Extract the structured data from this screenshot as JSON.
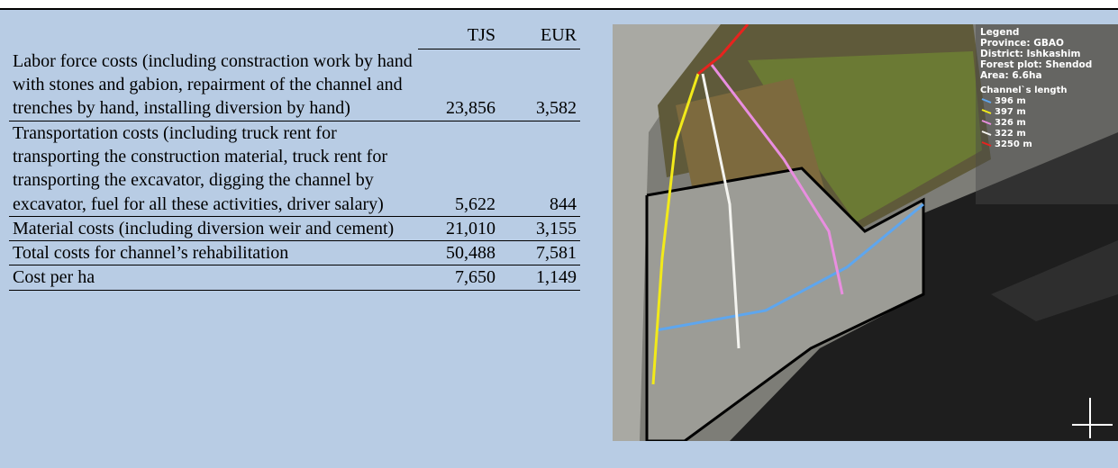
{
  "table": {
    "header": [
      "TJS",
      "EUR"
    ],
    "rows": [
      [
        "Labor force costs (including constraction work by hand with stones and gabion, repairment of the channel and trenches by hand, installing diversion by hand)",
        "23,856",
        "3,582"
      ],
      [
        "Transportation costs (including truck rent for transporting the construction material, truck rent for transporting the excavator, digging the channel by excavator, fuel for all these activities, driver salary)",
        "5,622",
        "844"
      ],
      [
        "Material costs (including diversion weir and cement)",
        "21,010",
        "3,155"
      ],
      [
        "Total costs for channel’s rehabilitation",
        "50,488",
        "7,581"
      ],
      [
        "Cost per ha",
        "7,650",
        "1,149"
      ]
    ]
  },
  "map": {
    "legend": {
      "title": "Legend",
      "lines": [
        "Province: GBAO",
        "District: Ishkashim",
        "Forest plot: Shendod",
        "Area: 6.6ha"
      ],
      "subtitle": "Channel`s length",
      "items": [
        {
          "label": "396 m",
          "color": "#5ea6ee"
        },
        {
          "label": "397 m",
          "color": "#f2ea1a"
        },
        {
          "label": "326 m",
          "color": "#e98ee0"
        },
        {
          "label": "322 m",
          "color": "#f4f4f0"
        },
        {
          "label": "3250 m",
          "color": "#e8231e"
        }
      ]
    }
  }
}
